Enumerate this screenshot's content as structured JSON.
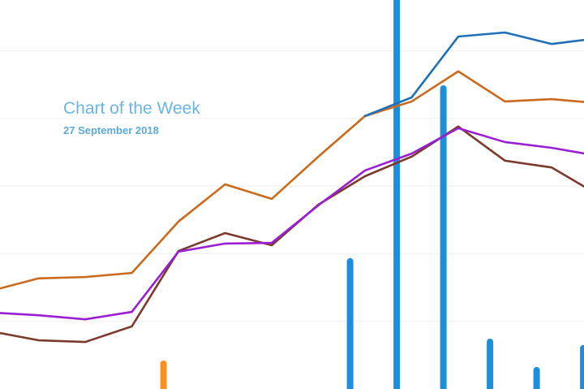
{
  "chart_data": {
    "type": "line",
    "title": "Chart of the Week",
    "subtitle": "27 September 2018",
    "categories": [
      null,
      null,
      null,
      null,
      null,
      null,
      null,
      null,
      null,
      null,
      null,
      null,
      null,
      null
    ],
    "ylim": [
      0,
      115
    ],
    "yticks": [
      20,
      40,
      60,
      80,
      100
    ],
    "grid": true,
    "series": [
      {
        "type": "bar",
        "color": "#f7901e",
        "values": [
          null,
          null,
          null,
          8.4,
          null,
          null,
          null,
          null,
          null,
          null,
          null,
          null,
          null,
          null
        ]
      },
      {
        "type": "bar",
        "color": "#1b8fdc",
        "values": [
          null,
          null,
          null,
          null,
          null,
          null,
          null,
          38.7,
          120,
          89.8,
          14.9,
          6.5,
          13.0,
          null
        ]
      },
      {
        "type": "line",
        "color": "#c96a1c",
        "values": [
          29.1,
          32.7,
          33.1,
          34.3,
          49.5,
          60.5,
          56.2,
          68.7,
          80.7,
          85.0,
          93.9,
          85.0,
          85.7,
          84.5
        ]
      },
      {
        "type": "line",
        "color": "#7b3a2b",
        "values": [
          17.0,
          14.4,
          13.9,
          18.5,
          40.8,
          46.1,
          42.5,
          54.5,
          62.9,
          68.7,
          77.6,
          67.5,
          65.5,
          57.4
        ]
      },
      {
        "type": "line",
        "color": "#9a1fd2",
        "values": [
          22.6,
          21.8,
          20.6,
          22.8,
          40.6,
          43.0,
          43.2,
          54.3,
          64.6,
          69.6,
          77.1,
          73.0,
          71.3,
          68.9
        ]
      },
      {
        "type": "line",
        "color": "#1f6fb6",
        "values": [
          null,
          null,
          null,
          null,
          null,
          null,
          null,
          null,
          80.7,
          86.2,
          104.2,
          105.4,
          102.0,
          103.7
        ]
      }
    ]
  }
}
